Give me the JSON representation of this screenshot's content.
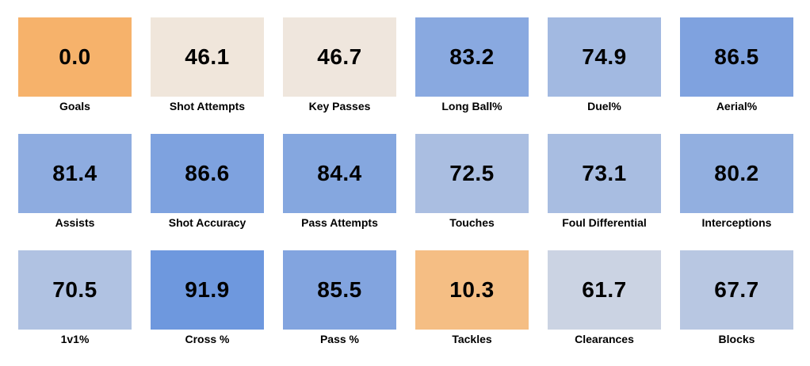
{
  "chart_data": {
    "type": "heatmap",
    "color_scale": {
      "low": "#f6b26b",
      "mid": "#efeae5",
      "high": "#5588dd",
      "midpoint": 50
    },
    "tiles": [
      {
        "label": "Goals",
        "value": 0.0
      },
      {
        "label": "Shot Attempts",
        "value": 46.1
      },
      {
        "label": "Key Passes",
        "value": 46.7
      },
      {
        "label": "Long Ball%",
        "value": 83.2
      },
      {
        "label": "Duel%",
        "value": 74.9
      },
      {
        "label": "Aerial%",
        "value": 86.5
      },
      {
        "label": "Assists",
        "value": 81.4
      },
      {
        "label": "Shot Accuracy",
        "value": 86.6
      },
      {
        "label": "Pass Attempts",
        "value": 84.4
      },
      {
        "label": "Touches",
        "value": 72.5
      },
      {
        "label": "Foul Differential",
        "value": 73.1
      },
      {
        "label": "Interceptions",
        "value": 80.2
      },
      {
        "label": "1v1%",
        "value": 70.5
      },
      {
        "label": "Cross %",
        "value": 91.9
      },
      {
        "label": "Pass %",
        "value": 85.5
      },
      {
        "label": "Tackles",
        "value": 10.3
      },
      {
        "label": "Clearances",
        "value": 61.7
      },
      {
        "label": "Blocks",
        "value": 67.7
      }
    ]
  }
}
